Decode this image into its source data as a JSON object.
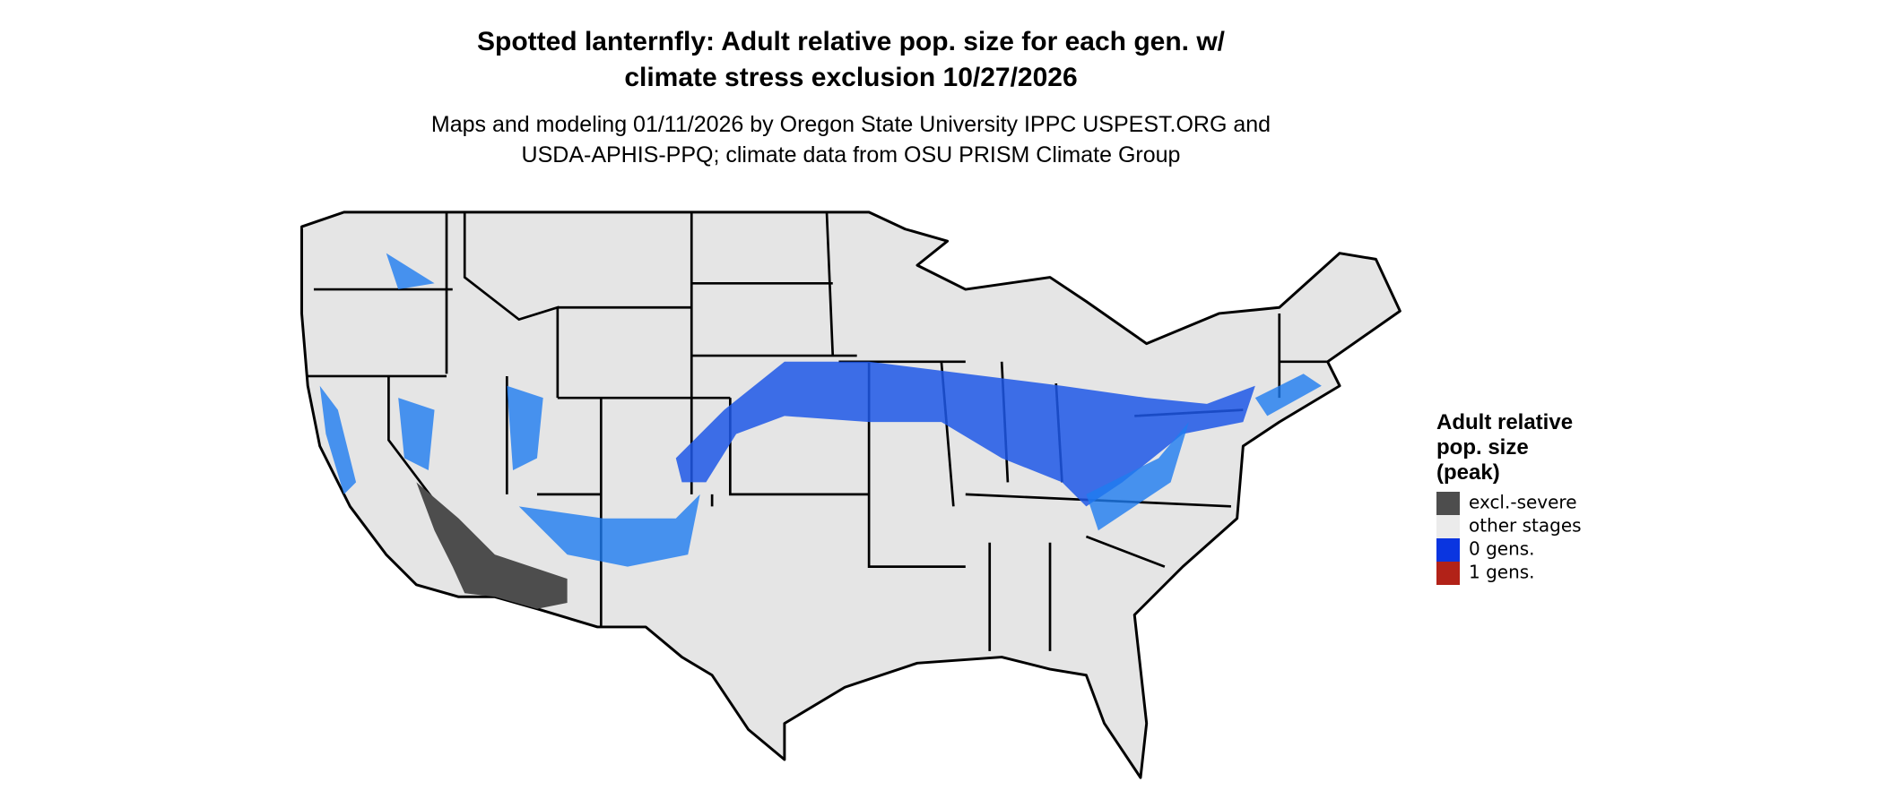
{
  "title": [
    "Spotted lanternfly: Adult relative pop. size for each gen. w/",
    "climate stress exclusion 10/27/2026"
  ],
  "subtitle": [
    "Maps and modeling 01/11/2026 by Oregon State University IPPC USPEST.ORG and",
    "USDA-APHIS-PPQ; climate data from OSU PRISM Climate Group"
  ],
  "legend": {
    "title": [
      "Adult relative",
      "pop. size",
      "(peak)"
    ],
    "items": [
      {
        "label": "excl.-severe",
        "color": "#4d4d4d"
      },
      {
        "label": "other stages",
        "color": "#ebebeb"
      },
      {
        "label": "0 gens.",
        "color": "#0a35e0"
      },
      {
        "label": "1 gens.",
        "color": "#b22218"
      }
    ]
  }
}
